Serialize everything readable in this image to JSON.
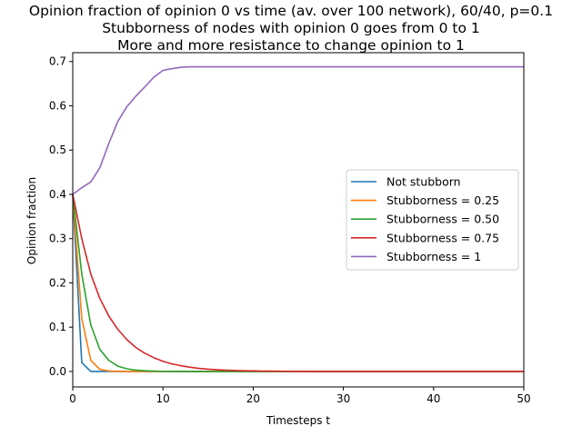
{
  "chart_data": {
    "type": "line",
    "title_lines": [
      "Opinion fraction of opinion 0 vs time (av. over 100 network), 60/40, p=0.1",
      "Stubborness of nodes with opinion 0 goes from 0 to 1",
      "More and more resistance to change opinion to 1"
    ],
    "xlabel": "Timesteps t",
    "ylabel": "Opinion fraction",
    "xlim": [
      0,
      50
    ],
    "ylim": [
      -0.035,
      0.72
    ],
    "xticks": [
      0,
      10,
      20,
      30,
      40,
      50
    ],
    "yticks": [
      0.0,
      0.1,
      0.2,
      0.3,
      0.4,
      0.5,
      0.6,
      0.7
    ],
    "grid": false,
    "legend_position": "center-right",
    "x": [
      0,
      1,
      2,
      3,
      4,
      5,
      6,
      7,
      8,
      9,
      10,
      11,
      12,
      13,
      14,
      15,
      16,
      17,
      18,
      19,
      20,
      21,
      22,
      23,
      24,
      25,
      26,
      27,
      28,
      29,
      30,
      31,
      32,
      33,
      34,
      35,
      36,
      37,
      38,
      39,
      40,
      41,
      42,
      43,
      44,
      45,
      46,
      47,
      48,
      49,
      50
    ],
    "series": [
      {
        "name": "Not stubborn",
        "color": "#1f77b4",
        "values": [
          0.4,
          0.02,
          0,
          0,
          0,
          0,
          0,
          0,
          0,
          0,
          0,
          0,
          0,
          0,
          0,
          0,
          0,
          0,
          0,
          0,
          0,
          0,
          0,
          0,
          0,
          0,
          0,
          0,
          0,
          0,
          0,
          0,
          0,
          0,
          0,
          0,
          0,
          0,
          0,
          0,
          0,
          0,
          0,
          0,
          0,
          0,
          0,
          0,
          0,
          0,
          0
        ]
      },
      {
        "name": "Stubborness = 0.25",
        "color": "#ff7f0e",
        "values": [
          0.4,
          0.12,
          0.025,
          0.005,
          0.001,
          0,
          0,
          0,
          0,
          0,
          0,
          0,
          0,
          0,
          0,
          0,
          0,
          0,
          0,
          0,
          0,
          0,
          0,
          0,
          0,
          0,
          0,
          0,
          0,
          0,
          0,
          0,
          0,
          0,
          0,
          0,
          0,
          0,
          0,
          0,
          0,
          0,
          0,
          0,
          0,
          0,
          0,
          0,
          0,
          0,
          0
        ]
      },
      {
        "name": "Stubborness = 0.50",
        "color": "#2ca02c",
        "values": [
          0.4,
          0.22,
          0.105,
          0.05,
          0.025,
          0.012,
          0.006,
          0.003,
          0.0015,
          0.0008,
          0.0004,
          0.0002,
          0.0001,
          0,
          0,
          0,
          0,
          0,
          0,
          0,
          0,
          0,
          0,
          0,
          0,
          0,
          0,
          0,
          0,
          0,
          0,
          0,
          0,
          0,
          0,
          0,
          0,
          0,
          0,
          0,
          0,
          0,
          0,
          0,
          0,
          0,
          0,
          0,
          0,
          0,
          0
        ]
      },
      {
        "name": "Stubborness = 0.75",
        "color": "#d62728",
        "values": [
          0.4,
          0.3,
          0.22,
          0.165,
          0.125,
          0.095,
          0.072,
          0.054,
          0.041,
          0.031,
          0.023,
          0.017,
          0.013,
          0.0095,
          0.007,
          0.0052,
          0.0039,
          0.0029,
          0.0022,
          0.0016,
          0.0012,
          0.0009,
          0.0007,
          0.0005,
          0.0004,
          0.0003,
          0.0002,
          0.0001,
          0.0001,
          0.0001,
          0,
          0,
          0,
          0,
          0,
          0,
          0,
          0,
          0,
          0,
          0,
          0,
          0,
          0,
          0,
          0,
          0,
          0,
          0,
          0,
          0
        ]
      },
      {
        "name": "Stubborness = 1",
        "color": "#9467bd",
        "values": [
          0.4,
          0.415,
          0.428,
          0.46,
          0.515,
          0.565,
          0.598,
          0.622,
          0.643,
          0.665,
          0.68,
          0.684,
          0.687,
          0.688,
          0.688,
          0.688,
          0.688,
          0.688,
          0.688,
          0.688,
          0.688,
          0.688,
          0.688,
          0.688,
          0.688,
          0.688,
          0.688,
          0.688,
          0.688,
          0.688,
          0.688,
          0.688,
          0.688,
          0.688,
          0.688,
          0.688,
          0.688,
          0.688,
          0.688,
          0.688,
          0.688,
          0.688,
          0.688,
          0.688,
          0.688,
          0.688,
          0.688,
          0.688,
          0.688,
          0.688,
          0.688
        ]
      }
    ]
  }
}
